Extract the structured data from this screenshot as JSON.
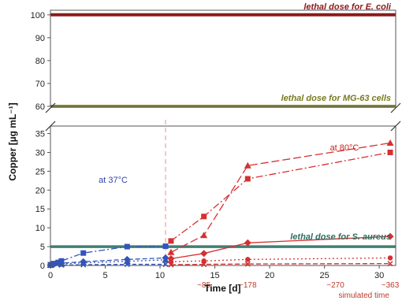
{
  "chart_data": {
    "type": "line",
    "xlabel": "Time [d]",
    "ylabel": "Copper [µg mL⁻¹]",
    "xlim": [
      0,
      31.5
    ],
    "upper_ylim": [
      60,
      102
    ],
    "lower_ylim": [
      0,
      37
    ],
    "x_ticks": [
      0,
      5,
      10,
      15,
      20,
      25,
      30
    ],
    "y_ticks_upper": [
      60,
      70,
      80,
      90,
      100
    ],
    "y_ticks_lower": [
      0,
      5,
      10,
      15,
      20,
      25,
      30,
      35
    ],
    "vline_x": 10.5,
    "reference_lines": [
      {
        "label": "lethal dose for E. coli",
        "value": 100,
        "color": "#8b1a1a",
        "label_color": "#8b1a1a"
      },
      {
        "label": "lethal dose for MG-63 cells",
        "value": 60,
        "color": "#8f8f2a",
        "label_color": "#7a7a20"
      },
      {
        "label": "lethal dose for S. aureus",
        "value": 5,
        "color": "#3f7f72",
        "label_color": "#2f6f63"
      }
    ],
    "annotations": [
      {
        "text": "at 37°C",
        "color": "#3344aa"
      },
      {
        "text": "at 80°C",
        "color": "#cc2222"
      }
    ],
    "simulated_ticks": [
      {
        "x": 14,
        "text": "~85"
      },
      {
        "x": 18,
        "text": "~178"
      },
      {
        "x": 26,
        "text": "~270"
      },
      {
        "x": 31,
        "text": "~363"
      }
    ],
    "simulated_label": "simulated time",
    "series": [
      {
        "color": "#3355bb",
        "marker": "square",
        "dash": "8,3,2,3",
        "x": [
          0,
          0.3,
          0.7,
          1,
          3,
          7,
          10.5
        ],
        "y": [
          0.2,
          0.5,
          0.8,
          1.2,
          3.3,
          5,
          5.1
        ]
      },
      {
        "color": "#3355bb",
        "marker": "diamond",
        "dash": "6,3",
        "x": [
          0,
          0.3,
          1,
          3,
          7,
          10.5
        ],
        "y": [
          0.1,
          0.3,
          0.6,
          1,
          1.6,
          2
        ]
      },
      {
        "color": "#3355bb",
        "marker": "triangle",
        "dash": "2,3",
        "x": [
          0,
          1,
          3,
          7,
          10.5
        ],
        "y": [
          0.1,
          0.4,
          0.7,
          1.1,
          1.5
        ]
      },
      {
        "color": "#3355bb",
        "marker": "x",
        "dash": "5,3",
        "x": [
          0,
          1,
          3,
          7,
          10.5
        ],
        "y": [
          0,
          0.1,
          0.2,
          0.3,
          0.3
        ]
      },
      {
        "color": "#d63030",
        "marker": "square",
        "dash": "9,3,2,3",
        "x": [
          11,
          14,
          18,
          31
        ],
        "y": [
          6.5,
          13,
          23,
          30
        ]
      },
      {
        "color": "#d63030",
        "marker": "triangle",
        "dash": "10,4",
        "x": [
          11,
          14,
          18,
          31
        ],
        "y": [
          3.5,
          8,
          26.5,
          32.5
        ]
      },
      {
        "color": "#d63030",
        "marker": "diamond",
        "dash": "",
        "x": [
          11,
          14,
          18,
          31
        ],
        "y": [
          1.8,
          3.2,
          6,
          7.7
        ]
      },
      {
        "color": "#d63030",
        "marker": "circle",
        "dash": "2,3",
        "x": [
          11,
          14,
          18,
          31
        ],
        "y": [
          1,
          1.2,
          1.6,
          2
        ]
      },
      {
        "color": "#d63030",
        "marker": "x",
        "dash": "6,3",
        "x": [
          11,
          14,
          18,
          31
        ],
        "y": [
          0.2,
          0.3,
          0.4,
          0.5
        ]
      }
    ]
  }
}
